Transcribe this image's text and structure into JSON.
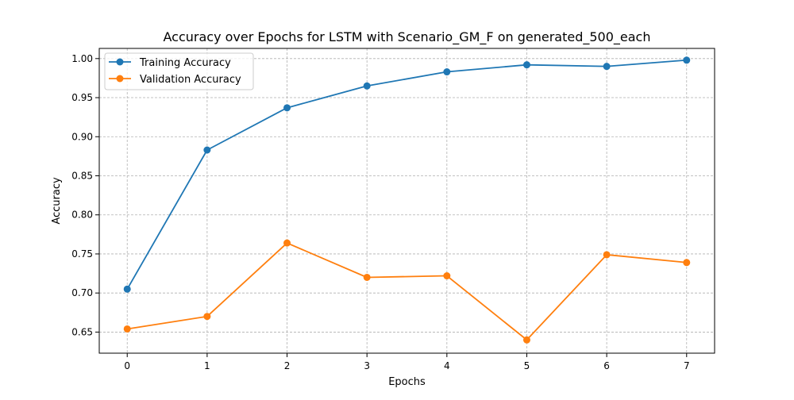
{
  "chart_data": {
    "type": "line",
    "title": "Accuracy over Epochs for LSTM with Scenario_GM_F on generated_500_each",
    "xlabel": "Epochs",
    "ylabel": "Accuracy",
    "x": [
      0,
      1,
      2,
      3,
      4,
      5,
      6,
      7
    ],
    "xticks": [
      "0",
      "1",
      "2",
      "3",
      "4",
      "5",
      "6",
      "7"
    ],
    "yticks": [
      "0.65",
      "0.70",
      "0.75",
      "0.80",
      "0.85",
      "0.90",
      "0.95",
      "1.00"
    ],
    "xlim": [
      -0.35,
      7.35
    ],
    "ylim": [
      0.623,
      1.013
    ],
    "grid": true,
    "legend_position": "top-left",
    "series": [
      {
        "name": "Training Accuracy",
        "color": "#1f77b4",
        "marker": "circle",
        "values": [
          0.705,
          0.883,
          0.937,
          0.965,
          0.983,
          0.992,
          0.99,
          0.998
        ]
      },
      {
        "name": "Validation Accuracy",
        "color": "#ff7f0e",
        "marker": "circle",
        "values": [
          0.654,
          0.67,
          0.764,
          0.72,
          0.722,
          0.64,
          0.749,
          0.739
        ]
      }
    ]
  }
}
